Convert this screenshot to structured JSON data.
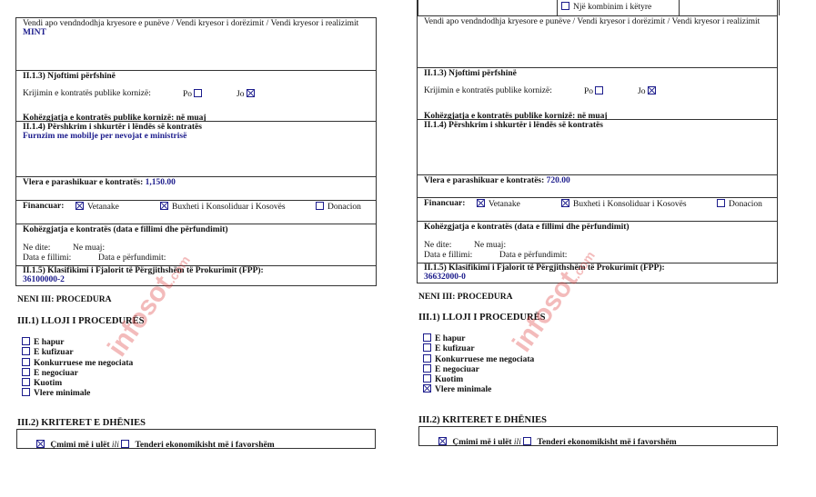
{
  "watermark": {
    "text": "infosot",
    "suffix": ".com",
    "color": "#dc3c3c"
  },
  "colors": {
    "value_blue": "#1c1c8c"
  },
  "panels": [
    {
      "top_row": null,
      "location_label": "Vendi apo vendndodhja kryesore e  punëve / Vendi kryesor i dorëzimit / Vendi kryesor i realizimit",
      "location_value": "MINT",
      "notice_heading": "II.1.3) Njoftimi përfshinë",
      "framework_label": "Krijimin e kontratës publike kornizë:",
      "po_label": "Po",
      "po_checked": false,
      "jo_label": "Jo",
      "jo_checked": true,
      "framework_duration": "Kohëzgjatja e kontratës publike kornizë: në muaj",
      "desc_heading": "II.1.4) Përshkrim i shkurtër i lëndës së kontratës",
      "desc_value": "Furnzim me mobilje per nevojat e ministrisë",
      "value_label": "Vlera e parashikuar e kontratës:",
      "value_amount": "1,150.00",
      "financing_label": "Financuar:",
      "financing": [
        {
          "label": "Vetanake",
          "checked": true
        },
        {
          "label": "Buxheti i Konsoliduar i Kosovës",
          "checked": true
        },
        {
          "label": "Donacion",
          "checked": false
        }
      ],
      "duration_heading": "Kohëzgjatja e kontratës (data e fillimi dhe përfundimit)",
      "ne_dite": "Ne dite:",
      "ne_muaj": "Ne muaj:",
      "data_fillimi": "Data e fillimi:",
      "data_perfundimit": "Data e përfundimit:",
      "cpv_heading": "II.1.5) Klasifikimi i Fjalorit të Përgjithshëm të Prokurimit (FPP):",
      "cpv_value": "36100000-2",
      "neni": "NENI III: PROCEDURA",
      "proc_heading": "III.1) LLOJI I PROCEDURËS",
      "procedures": [
        {
          "label": "E hapur",
          "checked": false
        },
        {
          "label": "E kufizuar",
          "checked": false
        },
        {
          "label": "Konkurruese me negociata",
          "checked": false
        },
        {
          "label": "E negociuar",
          "checked": false
        },
        {
          "label": "Kuotim",
          "checked": false
        },
        {
          "label": "Vlere minimale",
          "checked": false
        }
      ],
      "criteria_heading": "III.2) KRITERET E DHËNIES",
      "crit1": "Çmimi më i ulët",
      "crit1_checked": true,
      "ili": "ili",
      "crit2": "Tenderi ekonomikisht më i favorshëm",
      "crit2_checked": false
    },
    {
      "top_row": {
        "label": "Një kombinim i këtyre",
        "checked": false
      },
      "location_label": "Vendi apo vendndodhja kryesore e  punëve / Vendi kryesor i dorëzimit / Vendi kryesor i realizimit",
      "location_value": "",
      "notice_heading": "II.1.3) Njoftimi përfshinë",
      "framework_label": "Krijimin e kontratës publike kornizë:",
      "po_label": "Po",
      "po_checked": false,
      "jo_label": "Jo",
      "jo_checked": true,
      "framework_duration": "Kohëzgjatja e kontratës publike kornizë: në muaj",
      "desc_heading": "II.1.4) Përshkrim i shkurtër i lëndës së kontratës",
      "desc_value": "",
      "value_label": "Vlera e parashikuar e kontratës:",
      "value_amount": "720.00",
      "financing_label": "Financuar:",
      "financing": [
        {
          "label": "Vetanake",
          "checked": true
        },
        {
          "label": "Buxheti i Konsoliduar i Kosovës",
          "checked": true
        },
        {
          "label": "Donacion",
          "checked": false
        }
      ],
      "duration_heading": "Kohëzgjatja e kontratës (data e fillimi dhe përfundimit)",
      "ne_dite": "Ne dite:",
      "ne_muaj": "Ne muaj:",
      "data_fillimi": "Data e fillimi:",
      "data_perfundimit": "Data e përfundimit:",
      "cpv_heading": "II.1.5) Klasifikimi i Fjalorit të Përgjithshëm të Prokurimit (FPP):",
      "cpv_value": "36632000-0",
      "neni": "NENI III: PROCEDURA",
      "proc_heading": "III.1) LLOJI I PROCEDURËS",
      "procedures": [
        {
          "label": "E hapur",
          "checked": false
        },
        {
          "label": "E kufizuar",
          "checked": false
        },
        {
          "label": "Konkurruese me negociata",
          "checked": false
        },
        {
          "label": "E negociuar",
          "checked": false
        },
        {
          "label": "Kuotim",
          "checked": false
        },
        {
          "label": "Vlere minimale",
          "checked": true
        }
      ],
      "criteria_heading": "III.2) KRITERET E DHËNIES",
      "crit1": "Çmimi më i ulët",
      "crit1_checked": true,
      "ili": "ili",
      "crit2": "Tenderi ekonomikisht më i favorshëm",
      "crit2_checked": false
    }
  ]
}
